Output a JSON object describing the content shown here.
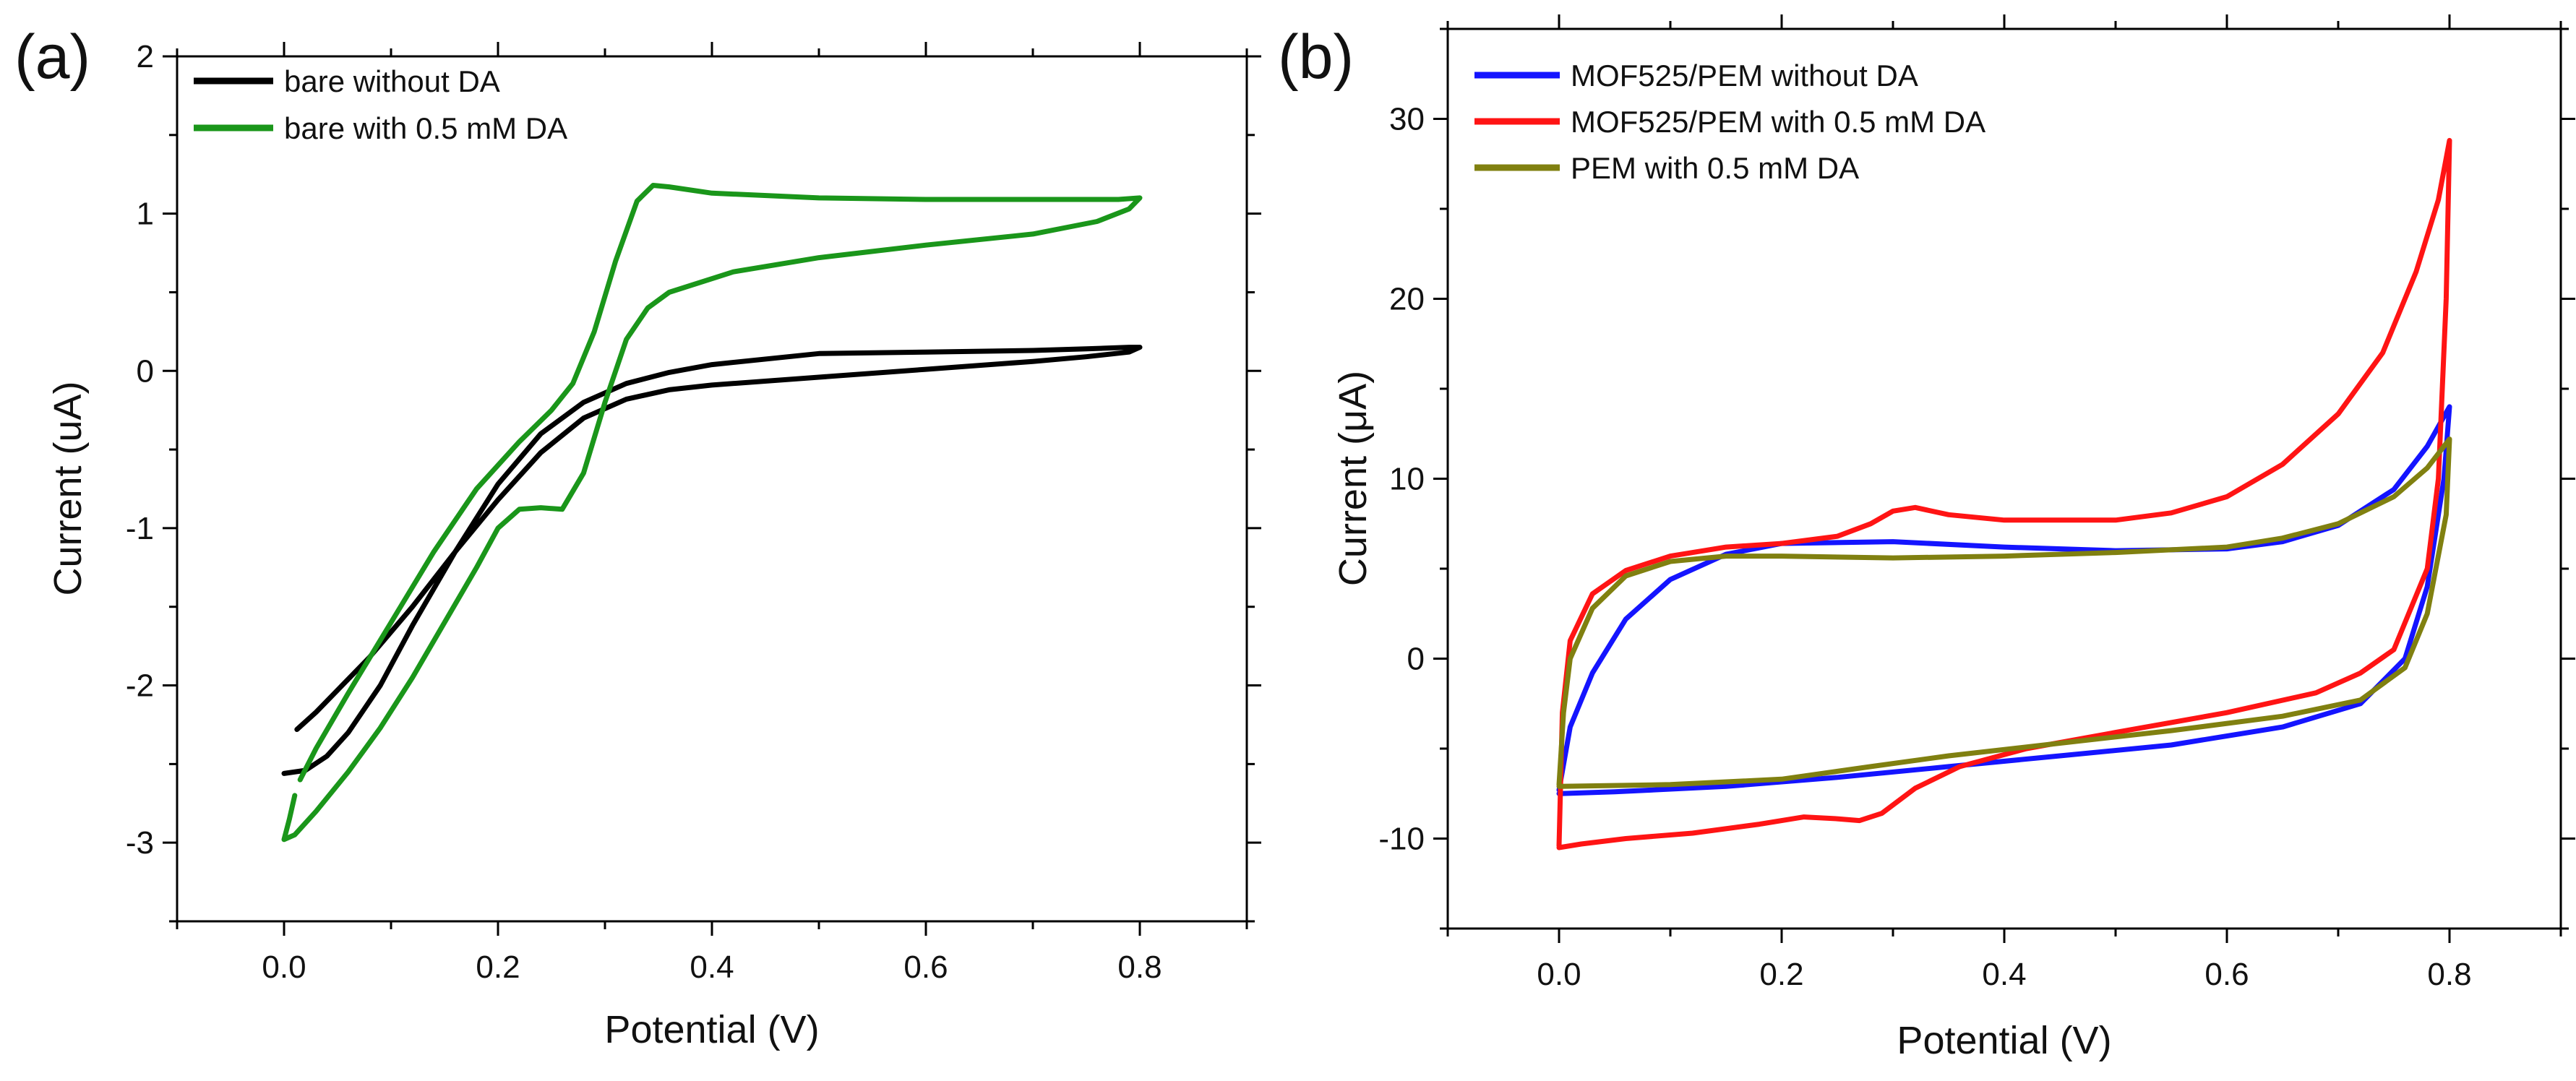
{
  "chart_data": [
    {
      "panel_label": "(a)",
      "type": "line",
      "xlabel": "Potential (V)",
      "ylabel": "Current (uA)",
      "xlim": [
        -0.1,
        0.9
      ],
      "ylim": [
        -3.5,
        2.0
      ],
      "xticks": [
        0.0,
        0.2,
        0.4,
        0.6,
        0.8
      ],
      "xtick_labels": [
        "0.0",
        "0.2",
        "0.4",
        "0.6",
        "0.8"
      ],
      "yticks": [
        -3,
        -2,
        -1,
        0,
        1,
        2
      ],
      "ytick_labels": [
        "-3",
        "-2",
        "-1",
        "0",
        "1",
        "2"
      ],
      "grid": false,
      "legend_position": "top-left",
      "series": [
        {
          "name": "bare without DA",
          "color": "#000000",
          "points": [
            [
              0.012,
              -2.28
            ],
            [
              0.03,
              -2.17
            ],
            [
              0.05,
              -2.03
            ],
            [
              0.08,
              -1.82
            ],
            [
              0.12,
              -1.5
            ],
            [
              0.16,
              -1.15
            ],
            [
              0.2,
              -0.82
            ],
            [
              0.24,
              -0.52
            ],
            [
              0.28,
              -0.3
            ],
            [
              0.32,
              -0.18
            ],
            [
              0.36,
              -0.12
            ],
            [
              0.4,
              -0.09
            ],
            [
              0.5,
              -0.04
            ],
            [
              0.6,
              0.01
            ],
            [
              0.7,
              0.06
            ],
            [
              0.75,
              0.09
            ],
            [
              0.79,
              0.12
            ],
            [
              0.8,
              0.15
            ],
            [
              0.79,
              0.15
            ],
            [
              0.75,
              0.14
            ],
            [
              0.7,
              0.13
            ],
            [
              0.6,
              0.12
            ],
            [
              0.5,
              0.11
            ],
            [
              0.4,
              0.04
            ],
            [
              0.36,
              -0.01
            ],
            [
              0.32,
              -0.08
            ],
            [
              0.28,
              -0.2
            ],
            [
              0.24,
              -0.4
            ],
            [
              0.2,
              -0.72
            ],
            [
              0.16,
              -1.15
            ],
            [
              0.12,
              -1.62
            ],
            [
              0.09,
              -2.0
            ],
            [
              0.06,
              -2.3
            ],
            [
              0.04,
              -2.45
            ],
            [
              0.02,
              -2.54
            ],
            [
              0.0,
              -2.56
            ]
          ]
        },
        {
          "name": "bare with 0.5 mM DA",
          "color": "#1a961a",
          "points": [
            [
              0.015,
              -2.6
            ],
            [
              0.03,
              -2.4
            ],
            [
              0.06,
              -2.05
            ],
            [
              0.1,
              -1.6
            ],
            [
              0.14,
              -1.15
            ],
            [
              0.18,
              -0.75
            ],
            [
              0.22,
              -0.45
            ],
            [
              0.25,
              -0.25
            ],
            [
              0.27,
              -0.08
            ],
            [
              0.29,
              0.25
            ],
            [
              0.31,
              0.7
            ],
            [
              0.33,
              1.08
            ],
            [
              0.345,
              1.18
            ],
            [
              0.36,
              1.17
            ],
            [
              0.4,
              1.13
            ],
            [
              0.5,
              1.1
            ],
            [
              0.6,
              1.09
            ],
            [
              0.7,
              1.09
            ],
            [
              0.78,
              1.09
            ],
            [
              0.8,
              1.1
            ],
            [
              0.79,
              1.03
            ],
            [
              0.76,
              0.95
            ],
            [
              0.7,
              0.87
            ],
            [
              0.6,
              0.8
            ],
            [
              0.5,
              0.72
            ],
            [
              0.42,
              0.63
            ],
            [
              0.36,
              0.5
            ],
            [
              0.34,
              0.4
            ],
            [
              0.32,
              0.2
            ],
            [
              0.3,
              -0.2
            ],
            [
              0.28,
              -0.65
            ],
            [
              0.26,
              -0.88
            ],
            [
              0.24,
              -0.87
            ],
            [
              0.22,
              -0.88
            ],
            [
              0.2,
              -1.0
            ],
            [
              0.18,
              -1.25
            ],
            [
              0.15,
              -1.6
            ],
            [
              0.12,
              -1.95
            ],
            [
              0.09,
              -2.27
            ],
            [
              0.06,
              -2.55
            ],
            [
              0.03,
              -2.8
            ],
            [
              0.01,
              -2.95
            ],
            [
              0.0,
              -2.98
            ],
            [
              0.005,
              -2.85
            ],
            [
              0.01,
              -2.7
            ]
          ]
        }
      ]
    },
    {
      "panel_label": "(b)",
      "type": "line",
      "xlabel": "Potential (V)",
      "ylabel": "Current (μA)",
      "xlim": [
        -0.1,
        0.9
      ],
      "ylim": [
        -15,
        35
      ],
      "xticks": [
        0.0,
        0.2,
        0.4,
        0.6,
        0.8
      ],
      "xtick_labels": [
        "0.0",
        "0.2",
        "0.4",
        "0.6",
        "0.8"
      ],
      "yticks": [
        -10,
        0,
        10,
        20,
        30
      ],
      "ytick_labels": [
        "-10",
        "0",
        "10",
        "20",
        "30"
      ],
      "grid": false,
      "legend_position": "top-left",
      "series": [
        {
          "name": "MOF525/PEM without DA",
          "color": "#1414ff",
          "points": [
            [
              0.0,
              -7.3
            ],
            [
              0.01,
              -3.8
            ],
            [
              0.03,
              -0.8
            ],
            [
              0.06,
              2.2
            ],
            [
              0.1,
              4.4
            ],
            [
              0.15,
              5.8
            ],
            [
              0.2,
              6.4
            ],
            [
              0.3,
              6.5
            ],
            [
              0.4,
              6.2
            ],
            [
              0.5,
              6.0
            ],
            [
              0.6,
              6.1
            ],
            [
              0.65,
              6.5
            ],
            [
              0.7,
              7.4
            ],
            [
              0.75,
              9.4
            ],
            [
              0.78,
              11.8
            ],
            [
              0.8,
              14.0
            ],
            [
              0.795,
              10.0
            ],
            [
              0.78,
              4.0
            ],
            [
              0.76,
              0.0
            ],
            [
              0.72,
              -2.5
            ],
            [
              0.65,
              -3.8
            ],
            [
              0.55,
              -4.8
            ],
            [
              0.45,
              -5.4
            ],
            [
              0.35,
              -6.0
            ],
            [
              0.25,
              -6.6
            ],
            [
              0.15,
              -7.1
            ],
            [
              0.05,
              -7.4
            ],
            [
              0.0,
              -7.5
            ]
          ]
        },
        {
          "name": "MOF525/PEM with 0.5 mM DA",
          "color": "#ff1414",
          "points": [
            [
              0.0,
              -10.4
            ],
            [
              0.003,
              -3.0
            ],
            [
              0.01,
              1.0
            ],
            [
              0.03,
              3.6
            ],
            [
              0.06,
              4.9
            ],
            [
              0.1,
              5.7
            ],
            [
              0.15,
              6.2
            ],
            [
              0.2,
              6.4
            ],
            [
              0.25,
              6.8
            ],
            [
              0.28,
              7.5
            ],
            [
              0.3,
              8.2
            ],
            [
              0.32,
              8.4
            ],
            [
              0.35,
              8.0
            ],
            [
              0.4,
              7.7
            ],
            [
              0.5,
              7.7
            ],
            [
              0.55,
              8.1
            ],
            [
              0.6,
              9.0
            ],
            [
              0.65,
              10.8
            ],
            [
              0.7,
              13.6
            ],
            [
              0.74,
              17.0
            ],
            [
              0.77,
              21.5
            ],
            [
              0.79,
              25.5
            ],
            [
              0.8,
              28.8
            ],
            [
              0.797,
              20.0
            ],
            [
              0.79,
              10.0
            ],
            [
              0.78,
              5.0
            ],
            [
              0.75,
              0.5
            ],
            [
              0.72,
              -0.8
            ],
            [
              0.68,
              -1.9
            ],
            [
              0.6,
              -3.0
            ],
            [
              0.5,
              -4.1
            ],
            [
              0.42,
              -5.0
            ],
            [
              0.36,
              -6.0
            ],
            [
              0.32,
              -7.2
            ],
            [
              0.29,
              -8.6
            ],
            [
              0.27,
              -9.0
            ],
            [
              0.25,
              -8.9
            ],
            [
              0.22,
              -8.8
            ],
            [
              0.18,
              -9.2
            ],
            [
              0.12,
              -9.7
            ],
            [
              0.06,
              -10.0
            ],
            [
              0.02,
              -10.3
            ],
            [
              0.0,
              -10.5
            ]
          ]
        },
        {
          "name": "PEM with 0.5 mM DA",
          "color": "#808010",
          "points": [
            [
              0.0,
              -7.0
            ],
            [
              0.004,
              -3.0
            ],
            [
              0.01,
              0.0
            ],
            [
              0.03,
              2.8
            ],
            [
              0.06,
              4.6
            ],
            [
              0.1,
              5.4
            ],
            [
              0.15,
              5.7
            ],
            [
              0.2,
              5.7
            ],
            [
              0.3,
              5.6
            ],
            [
              0.4,
              5.7
            ],
            [
              0.5,
              5.9
            ],
            [
              0.6,
              6.2
            ],
            [
              0.65,
              6.7
            ],
            [
              0.7,
              7.5
            ],
            [
              0.75,
              9.0
            ],
            [
              0.78,
              10.6
            ],
            [
              0.8,
              12.2
            ],
            [
              0.797,
              8.0
            ],
            [
              0.78,
              2.5
            ],
            [
              0.76,
              -0.5
            ],
            [
              0.72,
              -2.3
            ],
            [
              0.65,
              -3.2
            ],
            [
              0.55,
              -4.0
            ],
            [
              0.45,
              -4.7
            ],
            [
              0.35,
              -5.4
            ],
            [
              0.28,
              -6.0
            ],
            [
              0.2,
              -6.7
            ],
            [
              0.1,
              -7.0
            ],
            [
              0.0,
              -7.1
            ]
          ]
        }
      ]
    }
  ]
}
